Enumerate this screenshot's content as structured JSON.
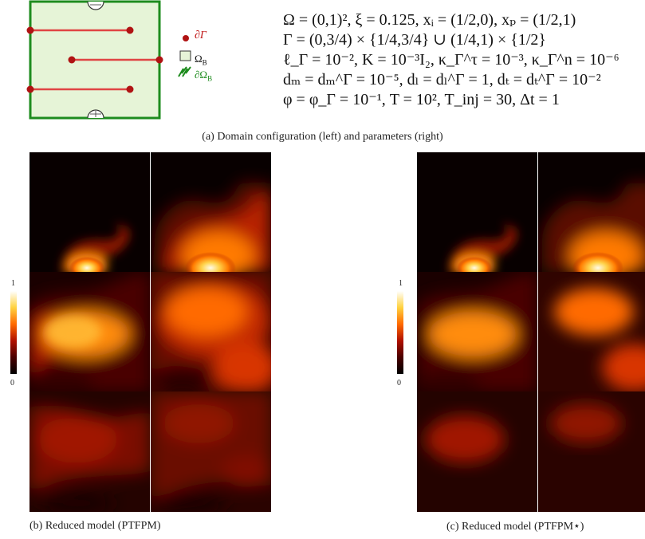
{
  "domain_figure": {
    "legend": {
      "fractures": "∂Γ",
      "domain": "Ω",
      "domain_sub": "B",
      "boundary": "∂Ω",
      "boundary_sub": "B"
    },
    "colors": {
      "box": "#1e8c1e",
      "box_fill": "#e6f4d7",
      "fracture": "#e04444",
      "node": "#b01313"
    }
  },
  "parameters": [
    "Ω = (0,1)², ξ = 0.125, xᵢ = (1/2,0), xₚ = (1/2,1)",
    "Γ = (0,3/4) × {1/4,3/4} ∪ (1/4,1) × {1/2}",
    "ℓ_Γ = 10⁻², K = 10⁻³I₂, κ_Γ^τ = 10⁻³, κ_Γ^n = 10⁻⁶",
    "dₘ = dₘ^Γ = 10⁻⁵, dₗ = dₗ^Γ = 1, dₜ = dₜ^Γ = 10⁻²",
    "φ = φ_Γ = 10⁻¹, T = 10², T_inj = 30, Δt = 1"
  ],
  "captions": {
    "a": "(a) Domain configuration (left) and parameters (right)",
    "b": "(b) Reduced model (PTFPM)",
    "c": "(c) Reduced model (PTFPM⋆)"
  },
  "colorbar": {
    "max": "1",
    "min": "0",
    "colormap": [
      "#000000",
      "#4a0000",
      "#b01000",
      "#ff6a00",
      "#ffd23f",
      "#ffffff"
    ]
  }
}
